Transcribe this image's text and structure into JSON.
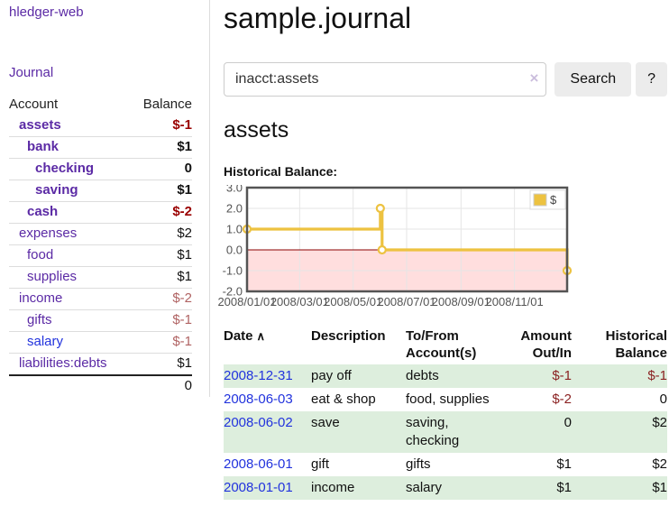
{
  "app": {
    "title": "hledger-web"
  },
  "sidebar": {
    "journal_link": "Journal",
    "table": {
      "account_header": "Account",
      "balance_header": "Balance",
      "accounts": [
        {
          "name": "assets",
          "balance": "$-1",
          "depth": 1,
          "bold": true,
          "negative": "strong"
        },
        {
          "name": "bank",
          "balance": "$1",
          "depth": 2,
          "bold": true,
          "negative": "none"
        },
        {
          "name": "checking",
          "balance": "0",
          "depth": 3,
          "bold": true,
          "negative": "none"
        },
        {
          "name": "saving",
          "balance": "$1",
          "depth": 3,
          "bold": true,
          "negative": "none"
        },
        {
          "name": "cash",
          "balance": "$-2",
          "depth": 2,
          "bold": true,
          "negative": "strong"
        },
        {
          "name": "expenses",
          "balance": "$2",
          "depth": 1,
          "bold": false,
          "negative": "none"
        },
        {
          "name": "food",
          "balance": "$1",
          "depth": 2,
          "bold": false,
          "negative": "none"
        },
        {
          "name": "supplies",
          "balance": "$1",
          "depth": 2,
          "bold": false,
          "negative": "none"
        },
        {
          "name": "income",
          "balance": "$-2",
          "depth": 1,
          "bold": false,
          "negative": "soft"
        },
        {
          "name": "gifts",
          "balance": "$-1",
          "depth": 2,
          "bold": false,
          "negative": "soft"
        },
        {
          "name": "salary",
          "balance": "$-1",
          "depth": 2,
          "bold": false,
          "negative": "soft",
          "link_style": "blue"
        },
        {
          "name": "liabilities:debts",
          "balance": "$1",
          "depth": 1,
          "bold": false,
          "negative": "none"
        }
      ],
      "total": "0"
    }
  },
  "header": {
    "title": "sample.journal"
  },
  "search": {
    "value": "inacct:assets",
    "clear_icon": "×",
    "button_label": "Search",
    "help_label": "?"
  },
  "account_page": {
    "heading": "assets",
    "chart_label": "Historical Balance:"
  },
  "chart_data": {
    "type": "line",
    "step": true,
    "legend": [
      {
        "label": "$",
        "color": "#edc240"
      }
    ],
    "legend_position": "top-right",
    "x_unit": "days since 2008-01-01",
    "points": [
      {
        "x": 0,
        "y": 1,
        "date": "2008-01-01"
      },
      {
        "x": 152,
        "y": 2,
        "date": "2008-06-01"
      },
      {
        "x": 154,
        "y": 0,
        "date": "2008-06-03"
      },
      {
        "x": 365,
        "y": -1,
        "date": "2008-12-31"
      }
    ],
    "xlim": [
      0,
      365
    ],
    "ylim": [
      -2,
      3
    ],
    "yticks": [
      {
        "v": 3,
        "label": "3.0"
      },
      {
        "v": 2,
        "label": "2.0"
      },
      {
        "v": 1,
        "label": "1.0"
      },
      {
        "v": 0,
        "label": "0.0"
      },
      {
        "v": -1,
        "label": "-1.0"
      },
      {
        "v": -2,
        "label": "-2.0"
      }
    ],
    "xticks": [
      {
        "v": 0,
        "label": "2008/01/01"
      },
      {
        "v": 60,
        "label": "2008/03/01"
      },
      {
        "v": 121,
        "label": "2008/05/01"
      },
      {
        "v": 182,
        "label": "2008/07/01"
      },
      {
        "v": 244,
        "label": "2008/09/01"
      },
      {
        "v": 305,
        "label": "2008/11/01"
      }
    ],
    "grid": true,
    "colors": {
      "line": "#edc240",
      "marker_fill": "#ffffff",
      "negative_region": "#ffdede",
      "zero_line": "#8b0000",
      "plot_border": "#545454",
      "gridline": "#e6e6e6",
      "tick_text": "#545454"
    }
  },
  "register": {
    "headers": {
      "date": "Date",
      "sort_icon": "∧",
      "description": "Description",
      "account": "To/From Account(s)",
      "amount": "Amount Out/In",
      "balance": "Historical Balance"
    },
    "rows": [
      {
        "date": "2008-12-31",
        "description": "pay off",
        "accounts": "debts",
        "amount": "$-1",
        "amount_negative": true,
        "balance": "$-1",
        "balance_negative": true
      },
      {
        "date": "2008-06-03",
        "description": "eat & shop",
        "accounts": "food, supplies",
        "amount": "$-2",
        "amount_negative": true,
        "balance": "0",
        "balance_negative": false
      },
      {
        "date": "2008-06-02",
        "description": "save",
        "accounts": "saving, checking",
        "amount": "0",
        "amount_negative": false,
        "balance": "$2",
        "balance_negative": false
      },
      {
        "date": "2008-06-01",
        "description": "gift",
        "accounts": "gifts",
        "amount": "$1",
        "amount_negative": false,
        "balance": "$2",
        "balance_negative": false
      },
      {
        "date": "2008-01-01",
        "description": "income",
        "accounts": "salary",
        "amount": "$1",
        "amount_negative": false,
        "balance": "$1",
        "balance_negative": false
      }
    ]
  }
}
